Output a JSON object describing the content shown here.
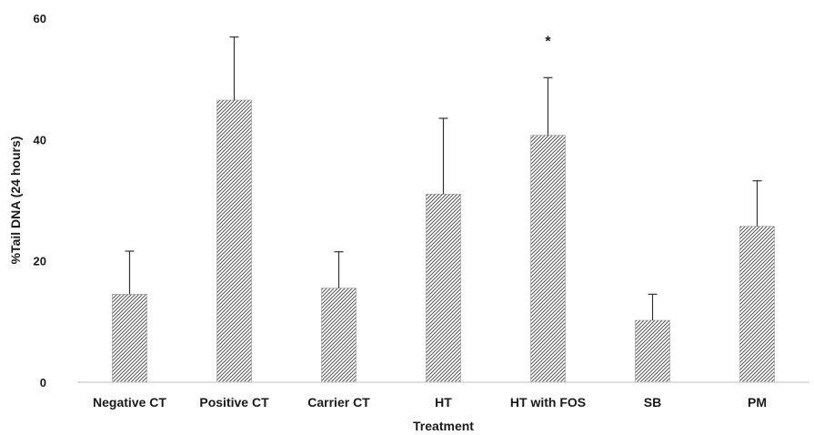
{
  "chart_data": {
    "type": "bar",
    "title": "",
    "xlabel": "Treatment",
    "ylabel": "%Tail DNA (24 hours)",
    "ylim": [
      0,
      60
    ],
    "yticks": [
      0,
      20,
      40,
      60
    ],
    "grid": false,
    "legend": "none",
    "categories": [
      "Negative CT",
      "Positive CT",
      "Carrier CT",
      "HT",
      "HT with FOS",
      "SB",
      "PM"
    ],
    "values": [
      14.5,
      46.5,
      15.5,
      31.0,
      40.7,
      10.2,
      25.7
    ],
    "error_upper": [
      7.1,
      10.4,
      6.0,
      12.5,
      9.5,
      4.3,
      7.5
    ],
    "annotations": [
      {
        "category": "HT with FOS",
        "text": "*"
      }
    ],
    "colors": {
      "bar_fill": "#ffffff",
      "bar_hatch": "#555555",
      "axis": "#bfbfbf",
      "text": "#1a1a1a",
      "error_bar": "#333333"
    }
  }
}
